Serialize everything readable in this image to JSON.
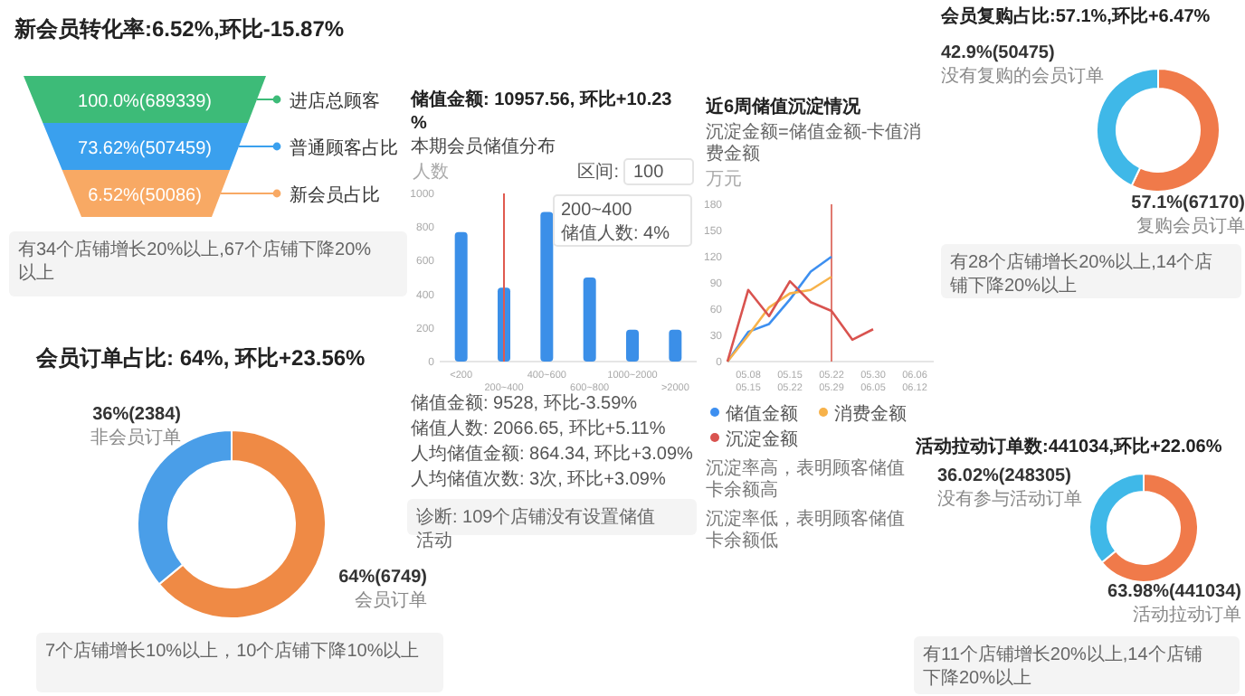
{
  "chart_data": [
    {
      "type": "other",
      "title": "新会员转化率:6.52%,环比-15.87%",
      "categories": [
        "进店总顾客",
        "普通顾客占比",
        "新会员占比"
      ],
      "value_labels": [
        "100.0%(689339)",
        "73.62%(507459)",
        "6.52%(50086)"
      ],
      "colors": [
        "#3dbb78",
        "#3aa0ee",
        "#f8a964"
      ],
      "annotations": [
        "有34个店铺增长20%以上,67个店铺下降20%以上"
      ]
    },
    {
      "type": "donut",
      "title": "会员订单占比: 64%, 环比+23.56%",
      "categories": [
        "会员订单",
        "非会员订单"
      ],
      "values": [
        64,
        36
      ],
      "value_labels": [
        "64%(6749)",
        "36%(2384)"
      ],
      "colors": [
        "#ef8a45",
        "#4a9ee8"
      ],
      "annotations": [
        "7个店铺增长10%以上，10个店铺下降10%以上"
      ]
    },
    {
      "type": "bar",
      "title": "储值金额: 10957.56, 环比+10.23%",
      "subtitle": "本期会员储值分布",
      "ylabel": "人数",
      "categories": [
        "<200",
        "200~400",
        "400~600",
        "600~800",
        "1000~2000",
        ">2000"
      ],
      "values": [
        770,
        440,
        890,
        500,
        190,
        190
      ],
      "color": "#3b8fe8",
      "ylim": [
        0,
        1000
      ],
      "yticks": [
        0,
        200,
        400,
        600,
        800,
        1000
      ],
      "ref_lines": [
        {
          "axis": "x",
          "value": "200~400",
          "color": "#e05a4f"
        }
      ],
      "annotations": [
        "区间:",
        "100",
        "200~400",
        "储值人数: 4%",
        "储值金额: 9528, 环比-3.59%",
        "储值人数: 2066.65, 环比+5.11%",
        "人均储值金额: 864.34, 环比+3.09%",
        "人均储值次数: 3次, 环比+3.09%",
        "诊断: 109个店铺没有设置储值活动"
      ]
    },
    {
      "type": "line",
      "title": "近6周储值沉淀情况",
      "subtitle": "沉淀金额=储值金额-卡值消费金额",
      "ylabel": "万元",
      "categories": [
        null,
        "05.08 05.15",
        null,
        "05.15 05.22",
        null,
        "05.22 05.29",
        null,
        "05.30 06.05",
        null,
        "06.06 06.12"
      ],
      "ylim": [
        0,
        180
      ],
      "yticks": [
        0,
        30,
        60,
        90,
        120,
        150,
        180
      ],
      "legend": "bottom",
      "ref_lines": [
        {
          "axis": "x",
          "value": "05.22 05.29",
          "color": "#e07a70"
        }
      ],
      "series": [
        {
          "name": "储值金额",
          "color": "#3d8ff0",
          "values": [
            0,
            34,
            43,
            71,
            103,
            120,
            null,
            null,
            null,
            null
          ]
        },
        {
          "name": "消费金额",
          "color": "#f7b24a",
          "values": [
            0,
            30,
            62,
            78,
            82,
            97,
            null,
            null,
            null,
            null
          ]
        },
        {
          "name": "沉淀金额",
          "color": "#d9534f",
          "values": [
            0,
            82,
            52,
            92,
            68,
            58,
            25,
            37,
            null,
            null
          ]
        }
      ],
      "annotations": [
        "沉淀率高，表明顾客储值卡余额高",
        "沉淀率低，表明顾客储值卡余额低"
      ]
    },
    {
      "type": "donut",
      "title": "会员复购占比:57.1%,环比+6.47%",
      "categories": [
        "复购会员订单",
        "没有复购的会员订单"
      ],
      "values": [
        57.1,
        42.9
      ],
      "value_labels": [
        "57.1%(67170)",
        "42.9%(50475)"
      ],
      "colors": [
        "#f07a4a",
        "#3fb8e8"
      ],
      "annotations": [
        "有28个店铺增长20%以上,14个店铺下降20%以上"
      ]
    },
    {
      "type": "donut",
      "title": "活动拉动订单数:441034,环比+22.06%",
      "categories": [
        "活动拉动订单",
        "没有参与活动订单"
      ],
      "values": [
        63.98,
        36.02
      ],
      "value_labels": [
        "63.98%(441034)",
        "36.02%(248305)"
      ],
      "colors": [
        "#f07a4a",
        "#3fb8e8"
      ],
      "annotations": [
        "有11个店铺增长20%以上,14个店铺下降20%以上"
      ]
    }
  ]
}
